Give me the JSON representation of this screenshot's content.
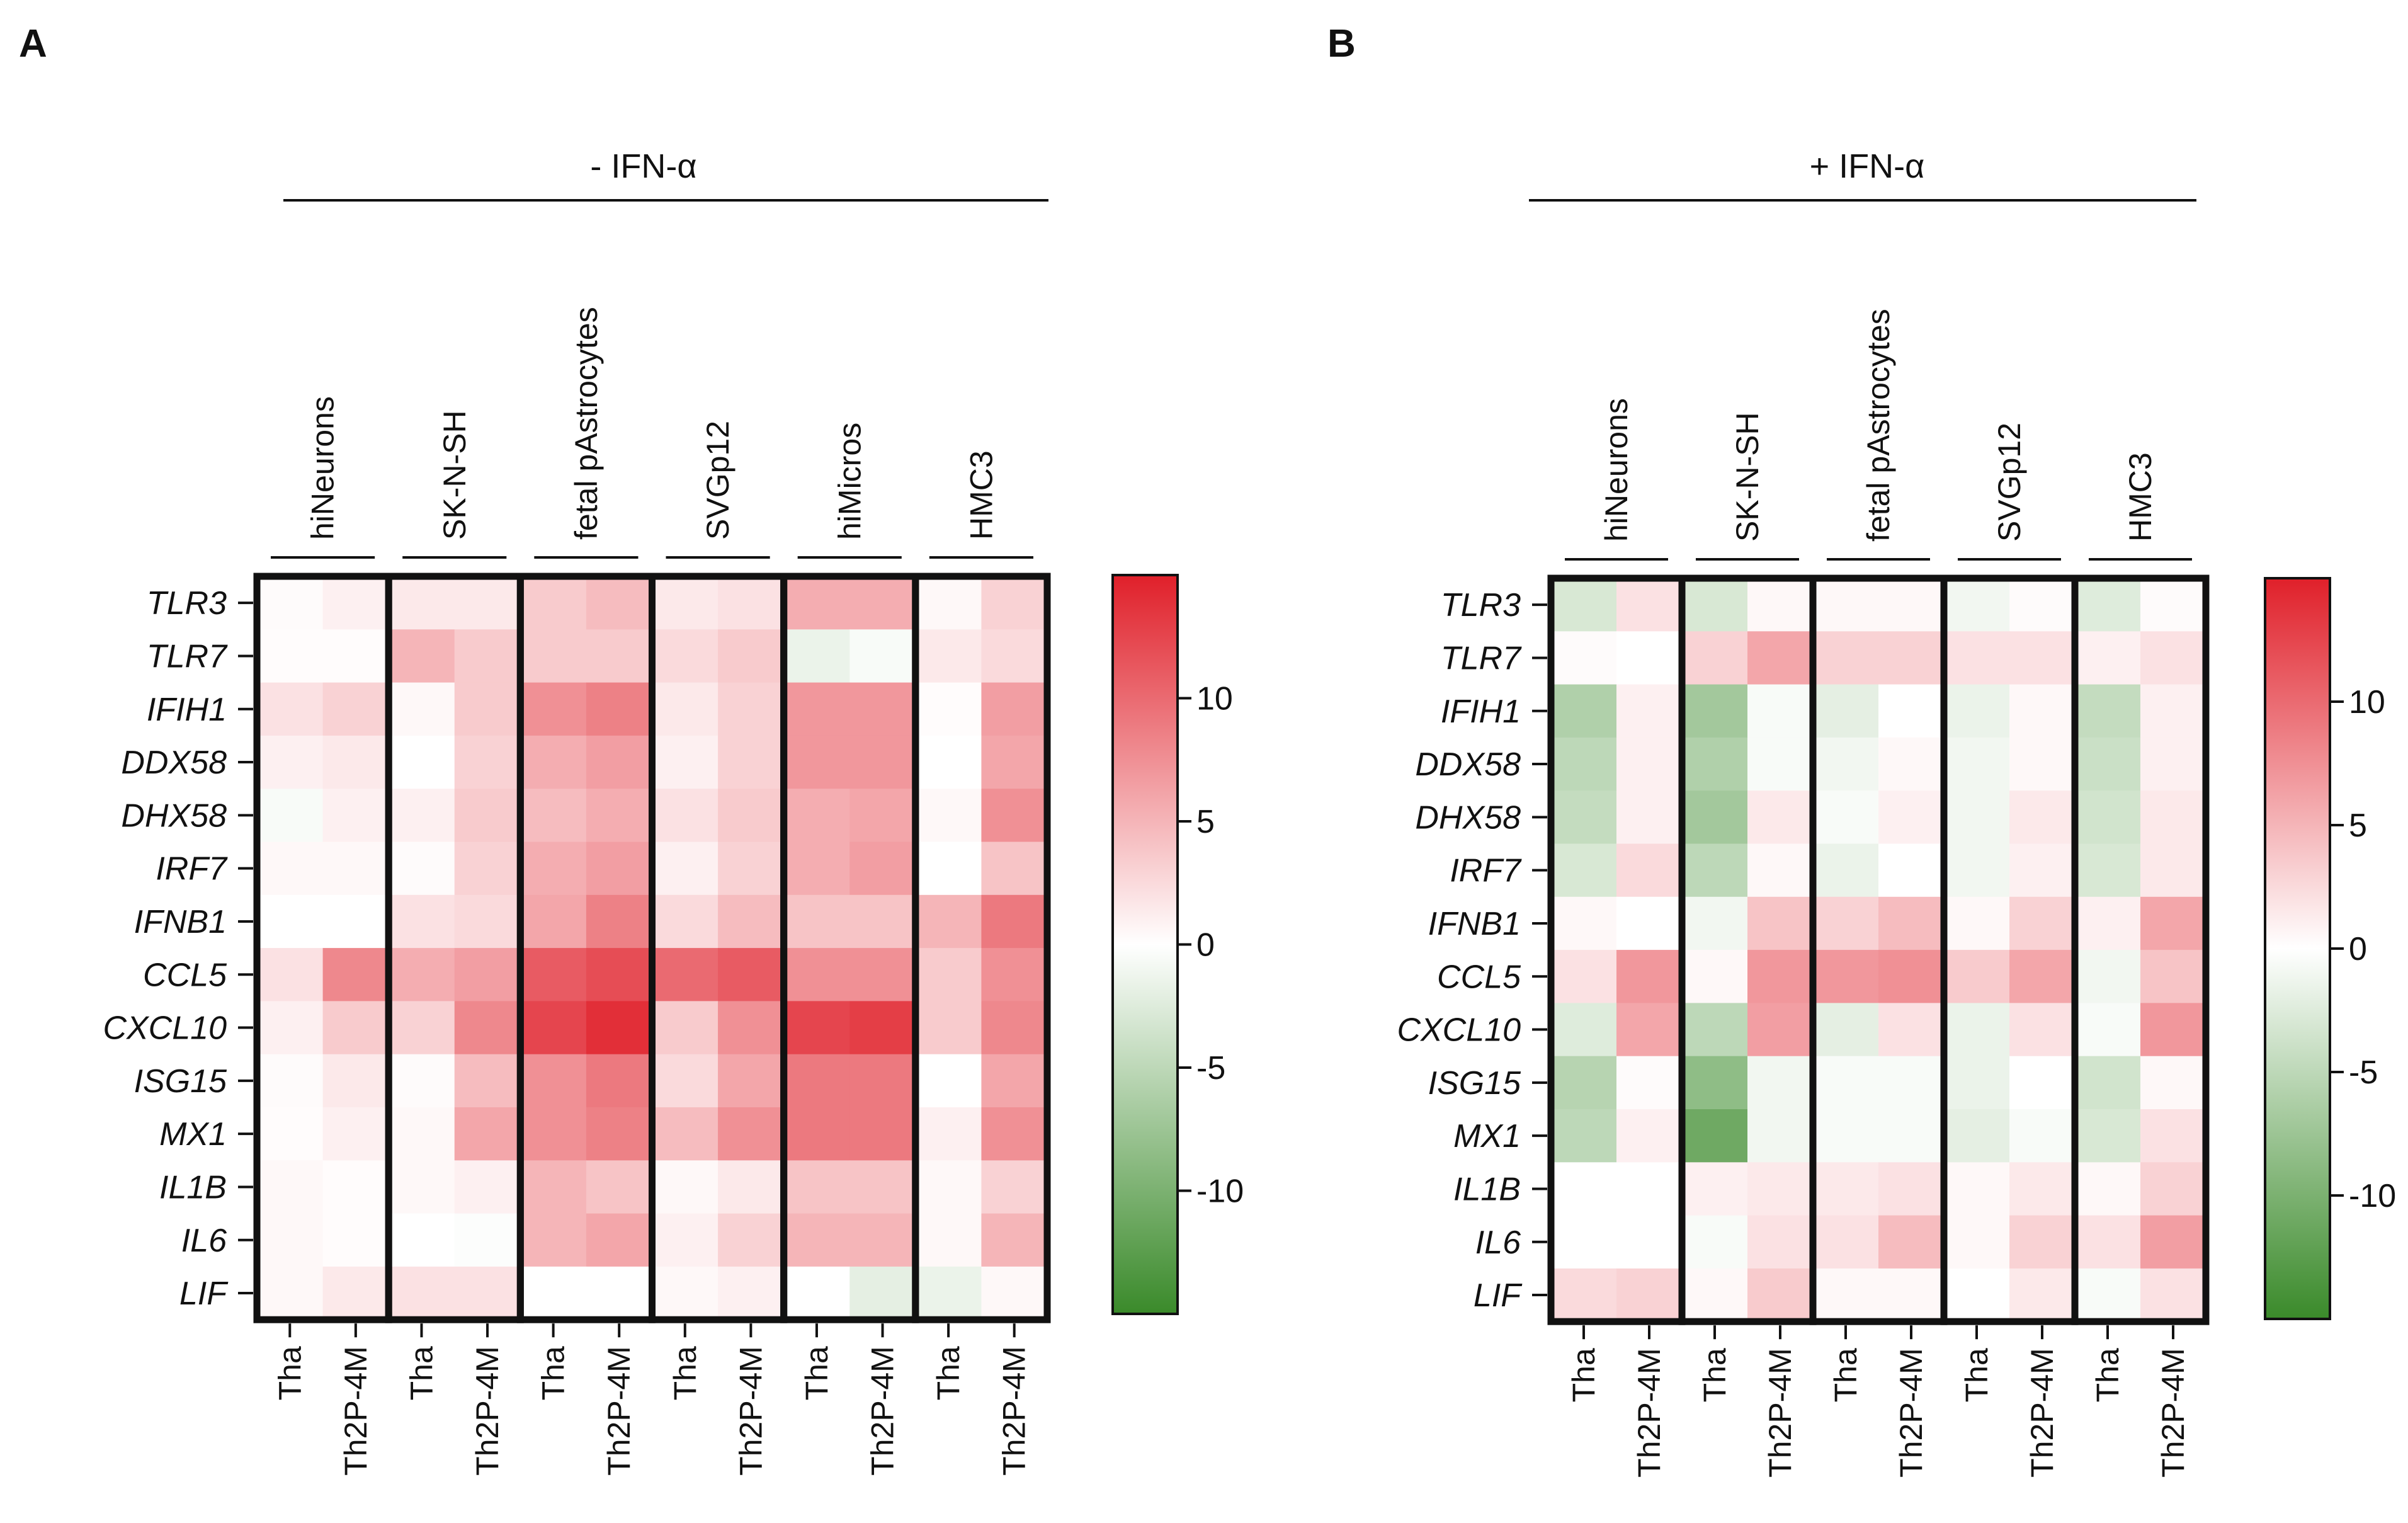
{
  "figure": {
    "panel_labels": [
      "A",
      "B"
    ],
    "colors": {
      "positive": "#e0202a",
      "zero": "#ffffff",
      "negative": "#3a8a2a"
    }
  },
  "chart_data": [
    {
      "type": "heatmap",
      "panel": "A",
      "title": "- IFN-α",
      "genes": [
        "TLR3",
        "TLR7",
        "IFIH1",
        "DDX58",
        "DHX58",
        "IRF7",
        "IFNB1",
        "CCL5",
        "CXCL10",
        "ISG15",
        "MX1",
        "IL1B",
        "IL6",
        "LIF"
      ],
      "groups": [
        {
          "name": "hiNeurons",
          "columns": [
            "Tha",
            "Th2P-4M"
          ]
        },
        {
          "name": "SK-N-SH",
          "columns": [
            "Tha",
            "Th2P-4M"
          ]
        },
        {
          "name": "fetal pAstrocytes",
          "columns": [
            "Tha",
            "Th2P-4M"
          ]
        },
        {
          "name": "SVGp12",
          "columns": [
            "Tha",
            "Th2P-4M"
          ]
        },
        {
          "name": "hiMicros",
          "columns": [
            "Tha",
            "Th2P-4M"
          ]
        },
        {
          "name": "HMC3",
          "columns": [
            "Tha",
            "Th2P-4M"
          ]
        }
      ],
      "values": [
        [
          0.3,
          1.0,
          1.5,
          1.5,
          3.5,
          4.5,
          1.5,
          2.0,
          5.5,
          5.5,
          0.5,
          3.0
        ],
        [
          0.2,
          0.2,
          5.0,
          3.5,
          3.5,
          3.5,
          2.5,
          3.5,
          -1.5,
          -0.5,
          1.5,
          2.5
        ],
        [
          2.0,
          3.0,
          0.5,
          3.5,
          7.5,
          8.5,
          1.5,
          3.0,
          7.0,
          7.0,
          0.2,
          6.5
        ],
        [
          1.0,
          1.5,
          0.0,
          3.0,
          5.5,
          6.5,
          1.0,
          3.0,
          7.0,
          7.0,
          0.0,
          6.0
        ],
        [
          -0.5,
          1.0,
          1.0,
          3.5,
          4.5,
          5.5,
          2.0,
          3.5,
          5.5,
          6.0,
          0.5,
          7.5
        ],
        [
          0.5,
          0.5,
          0.3,
          3.0,
          5.5,
          6.5,
          1.0,
          3.0,
          5.5,
          6.5,
          0.0,
          4.0
        ],
        [
          0.0,
          0.0,
          2.0,
          2.5,
          6.0,
          8.5,
          2.5,
          4.5,
          4.0,
          4.0,
          5.0,
          9.0
        ],
        [
          2.0,
          8.0,
          5.5,
          6.5,
          11.0,
          12.0,
          10.0,
          11.0,
          7.5,
          7.5,
          3.5,
          7.5
        ],
        [
          1.0,
          3.5,
          3.0,
          8.0,
          12.5,
          14.0,
          3.5,
          7.5,
          12.5,
          13.0,
          3.5,
          8.0
        ],
        [
          0.3,
          1.5,
          0.3,
          4.5,
          7.5,
          9.0,
          2.5,
          6.0,
          9.0,
          9.0,
          0.0,
          6.0
        ],
        [
          0.2,
          1.0,
          0.5,
          6.0,
          7.5,
          8.5,
          4.5,
          7.5,
          9.0,
          9.0,
          1.0,
          7.5
        ],
        [
          0.5,
          0.2,
          0.5,
          1.0,
          5.0,
          4.0,
          0.5,
          1.5,
          4.0,
          4.0,
          0.5,
          3.0
        ],
        [
          0.5,
          0.2,
          0.0,
          -0.2,
          5.0,
          6.0,
          1.0,
          3.0,
          5.0,
          5.0,
          0.5,
          5.0
        ],
        [
          0.5,
          1.5,
          2.0,
          2.0,
          0.0,
          0.0,
          0.5,
          1.0,
          0.0,
          -2.0,
          -1.5,
          0.5
        ]
      ],
      "colorbar": {
        "ticks": [
          10,
          5,
          0,
          -5,
          -10
        ],
        "range": [
          -15,
          15
        ],
        "label": ""
      }
    },
    {
      "type": "heatmap",
      "panel": "B",
      "title": "+ IFN-α",
      "genes": [
        "TLR3",
        "TLR7",
        "IFIH1",
        "DDX58",
        "DHX58",
        "IRF7",
        "IFNB1",
        "CCL5",
        "CXCL10",
        "ISG15",
        "MX1",
        "IL1B",
        "IL6",
        "LIF"
      ],
      "groups": [
        {
          "name": "hiNeurons",
          "columns": [
            "Tha",
            "Th2P-4M"
          ]
        },
        {
          "name": "SK-N-SH",
          "columns": [
            "Tha",
            "Th2P-4M"
          ]
        },
        {
          "name": "fetal pAstrocytes",
          "columns": [
            "Tha",
            "Th2P-4M"
          ]
        },
        {
          "name": "SVGp12",
          "columns": [
            "Tha",
            "Th2P-4M"
          ]
        },
        {
          "name": "HMC3",
          "columns": [
            "Tha",
            "Th2P-4M"
          ]
        }
      ],
      "values": [
        [
          -3.0,
          2.0,
          -3.0,
          0.5,
          0.5,
          0.5,
          -1.0,
          0.3,
          -2.5,
          0.3
        ],
        [
          0.3,
          0.0,
          3.0,
          6.0,
          3.0,
          3.0,
          2.0,
          2.0,
          1.0,
          2.0
        ],
        [
          -6.0,
          1.0,
          -7.0,
          -0.5,
          -2.0,
          0.0,
          -1.5,
          0.5,
          -4.5,
          1.0
        ],
        [
          -5.0,
          1.0,
          -6.0,
          -0.5,
          -1.0,
          0.5,
          -1.0,
          0.5,
          -4.0,
          1.0
        ],
        [
          -4.5,
          1.0,
          -7.0,
          1.5,
          -0.5,
          1.0,
          -1.0,
          1.5,
          -3.5,
          1.5
        ],
        [
          -3.0,
          2.5,
          -5.0,
          0.5,
          -1.5,
          0.0,
          -1.0,
          1.0,
          -3.0,
          1.5
        ],
        [
          0.5,
          0.0,
          -1.0,
          4.0,
          3.0,
          4.5,
          0.5,
          3.0,
          1.0,
          6.0
        ],
        [
          2.0,
          7.0,
          0.5,
          7.0,
          7.0,
          7.5,
          3.5,
          6.0,
          -1.0,
          4.0
        ],
        [
          -2.5,
          6.0,
          -5.0,
          6.5,
          -2.0,
          2.0,
          -1.5,
          2.0,
          -0.5,
          7.0
        ],
        [
          -5.5,
          0.3,
          -8.5,
          -1.0,
          -0.5,
          -0.5,
          -1.5,
          0.0,
          -3.5,
          0.5
        ],
        [
          -5.0,
          1.0,
          -11.0,
          -1.0,
          -0.5,
          -0.5,
          -2.0,
          -0.5,
          -3.0,
          2.0
        ],
        [
          0.0,
          0.0,
          1.0,
          1.5,
          1.5,
          2.0,
          0.5,
          1.5,
          0.5,
          3.0
        ],
        [
          0.0,
          0.0,
          -0.5,
          2.0,
          2.0,
          4.5,
          0.5,
          3.0,
          2.0,
          6.5
        ],
        [
          2.5,
          3.0,
          0.5,
          3.5,
          0.5,
          0.5,
          0.0,
          1.5,
          -0.5,
          2.0
        ]
      ],
      "colorbar": {
        "ticks": [
          10,
          5,
          0,
          -5,
          -10
        ],
        "range": [
          -15,
          15
        ],
        "label": ""
      }
    }
  ]
}
